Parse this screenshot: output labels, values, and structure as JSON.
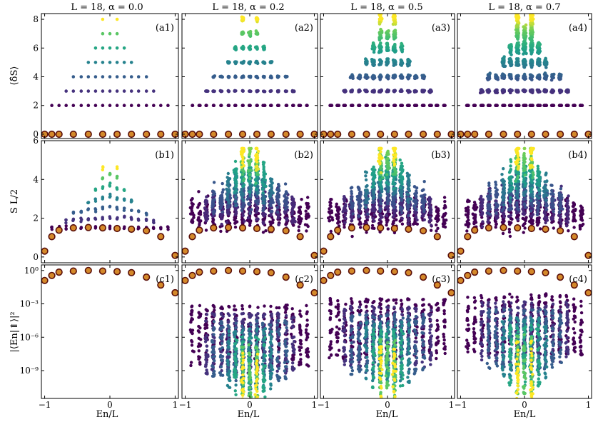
{
  "chart_data": {
    "type": "scatter",
    "layout": "grid-3x4",
    "column_titles": [
      "L = 18, α = 0.0",
      "L = 18, α = 0.2",
      "L = 18, α = 0.5",
      "L = 18, α = 0.7"
    ],
    "row_ylabels": [
      "⟨δ̂S⟩",
      "S L/2",
      "|⟨En|⇑⟩|²"
    ],
    "xlabel": "En/L",
    "xlim": [
      -1.05,
      1.05
    ],
    "xticks": [
      -1,
      0,
      1
    ],
    "panel_labels": [
      [
        "(a1)",
        "(a2)",
        "(a3)",
        "(a4)"
      ],
      [
        "(b1)",
        "(b2)",
        "(b3)",
        "(b4)"
      ],
      [
        "(c1)",
        "(c2)",
        "(c3)",
        "(c4)"
      ]
    ],
    "rows": [
      {
        "ylim": [
          -0.3,
          8.4
        ],
        "yscale": "linear",
        "yticks": [
          0,
          2,
          4,
          6,
          8
        ],
        "ytick_labels": [
          "0",
          "2",
          "4",
          "6",
          "8"
        ]
      },
      {
        "ylim": [
          -0.3,
          6.0
        ],
        "yscale": "linear",
        "yticks": [
          0,
          2,
          4,
          6
        ],
        "ytick_labels": [
          "0",
          "2",
          "4",
          "6"
        ]
      },
      {
        "ylim_log10": [
          -11.5,
          0.5
        ],
        "yscale": "log",
        "yticks_log10": [
          0,
          -3,
          -6,
          -9
        ],
        "ytick_labels": [
          "10⁰",
          "10⁻³",
          "10⁻⁶",
          "10⁻⁹"
        ]
      }
    ],
    "scar_states_x": [
      -1.0,
      -0.89,
      -0.78,
      -0.56,
      -0.33,
      -0.11,
      0.11,
      0.33,
      0.56,
      0.78,
      1.0
    ],
    "scar_states_entropy": [
      0.3,
      1.05,
      1.38,
      1.5,
      1.52,
      1.5,
      1.47,
      1.43,
      1.35,
      1.05,
      0.08
    ],
    "scar_states_log10_overlap": [
      -0.9,
      -0.45,
      -0.15,
      -0.05,
      0.0,
      -0.05,
      -0.1,
      -0.2,
      -0.6,
      -1.3,
      -2.0
    ],
    "tower_levels": [
      {
        "dS": 2,
        "x": [
          -0.89,
          -0.78,
          -0.67,
          -0.56,
          -0.44,
          -0.33,
          -0.22,
          -0.11,
          0.0,
          0.11,
          0.22,
          0.33,
          0.44,
          0.56,
          0.67,
          0.78,
          0.89
        ]
      },
      {
        "dS": 3,
        "x": [
          -0.67,
          -0.56,
          -0.44,
          -0.33,
          -0.22,
          -0.11,
          0.0,
          0.11,
          0.22,
          0.33,
          0.44,
          0.56,
          0.67
        ]
      },
      {
        "dS": 4,
        "x": [
          -0.56,
          -0.44,
          -0.33,
          -0.22,
          -0.11,
          0.0,
          0.11,
          0.22,
          0.33,
          0.44,
          0.56
        ]
      },
      {
        "dS": 5,
        "x": [
          -0.33,
          -0.22,
          -0.11,
          0.0,
          0.11,
          0.22,
          0.33
        ]
      },
      {
        "dS": 6,
        "x": [
          -0.22,
          -0.11,
          0.0,
          0.11,
          0.22
        ]
      },
      {
        "dS": 7,
        "x": [
          -0.11,
          0.0,
          0.11
        ]
      },
      {
        "dS": 8,
        "x": [
          -0.11,
          0.11
        ]
      }
    ],
    "colormap": "viridis",
    "colors": {
      "scar_fill": "#d4892a",
      "scar_edge": "#5a0f0a",
      "dark": "#440154",
      "mid": "#21918c",
      "bright": "#fde725"
    }
  }
}
